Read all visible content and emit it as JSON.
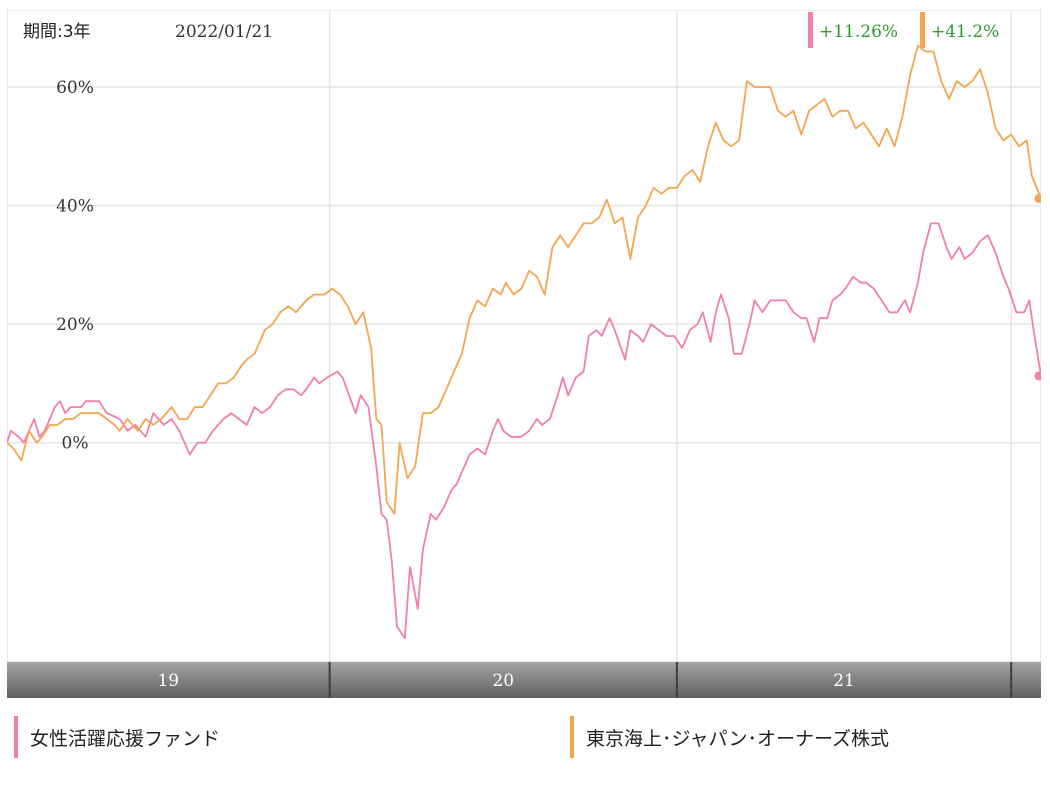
{
  "header": {
    "period": "期間:3年",
    "date": "2022/01/21"
  },
  "returns": {
    "fund_a": "+11.26%",
    "fund_b": "+41.2%"
  },
  "colors": {
    "fund_a": "#f07fb0",
    "fund_b": "#f4a552",
    "return_text": "#2e9a2e",
    "grid": "#e6e6e6",
    "band_top": "#9a9a9a",
    "band_bottom": "#666666"
  },
  "chart_data": {
    "type": "line",
    "ylim": [
      -37,
      73
    ],
    "y_ticks": [
      {
        "v": 60,
        "label": "60%"
      },
      {
        "v": 40,
        "label": "40%"
      },
      {
        "v": 20,
        "label": "20%"
      },
      {
        "v": 0,
        "label": "0%"
      }
    ],
    "x_range": [
      2018.065,
      2022.055
    ],
    "x_year_bounds": [
      2019.31,
      2020.65,
      2021.94
    ],
    "x_bands": [
      {
        "label": "19",
        "from": 2018.065,
        "to": 2019.31
      },
      {
        "label": "20",
        "from": 2019.31,
        "to": 2020.65
      },
      {
        "label": "21",
        "from": 2020.65,
        "to": 2021.94
      }
    ],
    "series": [
      {
        "name": "女性活躍応援ファンド",
        "color": "#f07fb0",
        "values": [
          [
            2018.065,
            0
          ],
          [
            2018.08,
            2
          ],
          [
            2018.11,
            1
          ],
          [
            2018.13,
            0
          ],
          [
            2018.17,
            4
          ],
          [
            2018.19,
            1
          ],
          [
            2018.21,
            2
          ],
          [
            2018.25,
            6
          ],
          [
            2018.27,
            7
          ],
          [
            2018.29,
            5
          ],
          [
            2018.31,
            6
          ],
          [
            2018.35,
            6
          ],
          [
            2018.37,
            7
          ],
          [
            2018.39,
            7
          ],
          [
            2018.42,
            7
          ],
          [
            2018.45,
            5
          ],
          [
            2018.5,
            4
          ],
          [
            2018.53,
            2
          ],
          [
            2018.56,
            3
          ],
          [
            2018.6,
            1
          ],
          [
            2018.63,
            5
          ],
          [
            2018.67,
            3
          ],
          [
            2018.7,
            4
          ],
          [
            2018.73,
            2
          ],
          [
            2018.75,
            0
          ],
          [
            2018.77,
            -2
          ],
          [
            2018.8,
            0
          ],
          [
            2018.83,
            0
          ],
          [
            2018.86,
            2
          ],
          [
            2018.9,
            4
          ],
          [
            2018.93,
            5
          ],
          [
            2018.96,
            4
          ],
          [
            2018.99,
            3
          ],
          [
            2019.02,
            6
          ],
          [
            2019.05,
            5
          ],
          [
            2019.08,
            6
          ],
          [
            2019.11,
            8
          ],
          [
            2019.14,
            9
          ],
          [
            2019.17,
            9
          ],
          [
            2019.2,
            8
          ],
          [
            2019.22,
            9
          ],
          [
            2019.25,
            11
          ],
          [
            2019.27,
            10
          ],
          [
            2019.3,
            11
          ],
          [
            2019.34,
            12
          ],
          [
            2019.36,
            11
          ],
          [
            2019.41,
            5
          ],
          [
            2019.43,
            8
          ],
          [
            2019.46,
            6
          ],
          [
            2019.49,
            -4
          ],
          [
            2019.51,
            -12
          ],
          [
            2019.53,
            -13
          ],
          [
            2019.55,
            -20
          ],
          [
            2019.57,
            -31
          ],
          [
            2019.6,
            -33
          ],
          [
            2019.62,
            -21
          ],
          [
            2019.65,
            -28
          ],
          [
            2019.67,
            -18
          ],
          [
            2019.7,
            -12
          ],
          [
            2019.72,
            -13
          ],
          [
            2019.75,
            -11
          ],
          [
            2019.78,
            -8
          ],
          [
            2019.8,
            -7
          ],
          [
            2019.83,
            -4
          ],
          [
            2019.85,
            -2
          ],
          [
            2019.88,
            -1
          ],
          [
            2019.91,
            -2
          ],
          [
            2019.94,
            2
          ],
          [
            2019.96,
            4
          ],
          [
            2019.98,
            2
          ],
          [
            2020.01,
            1
          ],
          [
            2020.05,
            1
          ],
          [
            2020.08,
            2
          ],
          [
            2020.11,
            4
          ],
          [
            2020.13,
            3
          ],
          [
            2020.16,
            4
          ],
          [
            2020.19,
            8
          ],
          [
            2020.21,
            11
          ],
          [
            2020.23,
            8
          ],
          [
            2020.26,
            11
          ],
          [
            2020.29,
            12
          ],
          [
            2020.31,
            18
          ],
          [
            2020.34,
            19
          ],
          [
            2020.36,
            18
          ],
          [
            2020.39,
            21
          ],
          [
            2020.41,
            19
          ],
          [
            2020.45,
            14
          ],
          [
            2020.47,
            19
          ],
          [
            2020.5,
            18
          ],
          [
            2020.52,
            17
          ],
          [
            2020.55,
            20
          ],
          [
            2020.58,
            19
          ],
          [
            2020.61,
            18
          ],
          [
            2020.64,
            18
          ],
          [
            2020.67,
            16
          ],
          [
            2020.7,
            19
          ],
          [
            2020.73,
            20
          ],
          [
            2020.75,
            22
          ],
          [
            2020.78,
            17
          ],
          [
            2020.8,
            22
          ],
          [
            2020.82,
            25
          ],
          [
            2020.85,
            21
          ],
          [
            2020.87,
            15
          ],
          [
            2020.9,
            15
          ],
          [
            2020.93,
            20
          ],
          [
            2020.95,
            24
          ],
          [
            2020.98,
            22
          ],
          [
            2021.01,
            24
          ],
          [
            2021.04,
            24
          ],
          [
            2021.07,
            24
          ],
          [
            2021.1,
            22
          ],
          [
            2021.13,
            21
          ],
          [
            2021.15,
            21
          ],
          [
            2021.18,
            17
          ],
          [
            2021.2,
            21
          ],
          [
            2021.23,
            21
          ],
          [
            2021.25,
            24
          ],
          [
            2021.28,
            25
          ],
          [
            2021.3,
            26
          ],
          [
            2021.33,
            28
          ],
          [
            2021.36,
            27
          ],
          [
            2021.38,
            27
          ],
          [
            2021.41,
            26
          ],
          [
            2021.44,
            24
          ],
          [
            2021.47,
            22
          ],
          [
            2021.5,
            22
          ],
          [
            2021.53,
            24
          ],
          [
            2021.55,
            22
          ],
          [
            2021.58,
            27
          ],
          [
            2021.6,
            32
          ],
          [
            2021.63,
            37
          ],
          [
            2021.66,
            37
          ],
          [
            2021.69,
            33
          ],
          [
            2021.71,
            31
          ],
          [
            2021.74,
            33
          ],
          [
            2021.76,
            31
          ],
          [
            2021.79,
            32
          ],
          [
            2021.82,
            34
          ],
          [
            2021.85,
            35
          ],
          [
            2021.88,
            32
          ],
          [
            2021.91,
            28
          ],
          [
            2021.93,
            26
          ],
          [
            2021.96,
            22
          ],
          [
            2021.99,
            22
          ],
          [
            2022.01,
            24
          ],
          [
            2022.03,
            18
          ],
          [
            2022.055,
            11.26
          ]
        ]
      },
      {
        "name": "東京海上･ジャパン･オーナーズ株式",
        "color": "#f4a552",
        "values": [
          [
            2018.065,
            0
          ],
          [
            2018.09,
            -1
          ],
          [
            2018.12,
            -3
          ],
          [
            2018.15,
            2
          ],
          [
            2018.18,
            0
          ],
          [
            2018.2,
            1
          ],
          [
            2018.23,
            3
          ],
          [
            2018.26,
            3
          ],
          [
            2018.29,
            4
          ],
          [
            2018.32,
            4
          ],
          [
            2018.35,
            5
          ],
          [
            2018.38,
            5
          ],
          [
            2018.42,
            5
          ],
          [
            2018.45,
            4
          ],
          [
            2018.48,
            3
          ],
          [
            2018.5,
            2
          ],
          [
            2018.53,
            4
          ],
          [
            2018.57,
            2
          ],
          [
            2018.6,
            4
          ],
          [
            2018.63,
            3
          ],
          [
            2018.66,
            4
          ],
          [
            2018.7,
            6
          ],
          [
            2018.73,
            4
          ],
          [
            2018.76,
            4
          ],
          [
            2018.79,
            6
          ],
          [
            2018.82,
            6
          ],
          [
            2018.85,
            8
          ],
          [
            2018.88,
            10
          ],
          [
            2018.91,
            10
          ],
          [
            2018.94,
            11
          ],
          [
            2018.97,
            13
          ],
          [
            2018.99,
            14
          ],
          [
            2019.02,
            15
          ],
          [
            2019.06,
            19
          ],
          [
            2019.09,
            20
          ],
          [
            2019.12,
            22
          ],
          [
            2019.15,
            23
          ],
          [
            2019.18,
            22
          ],
          [
            2019.22,
            24
          ],
          [
            2019.25,
            25
          ],
          [
            2019.29,
            25
          ],
          [
            2019.32,
            26
          ],
          [
            2019.35,
            25
          ],
          [
            2019.38,
            23
          ],
          [
            2019.41,
            20
          ],
          [
            2019.44,
            22
          ],
          [
            2019.47,
            16
          ],
          [
            2019.49,
            4
          ],
          [
            2019.51,
            3
          ],
          [
            2019.53,
            -10
          ],
          [
            2019.56,
            -12
          ],
          [
            2019.58,
            0
          ],
          [
            2019.61,
            -6
          ],
          [
            2019.64,
            -4
          ],
          [
            2019.67,
            5
          ],
          [
            2019.7,
            5
          ],
          [
            2019.73,
            6
          ],
          [
            2019.76,
            9
          ],
          [
            2019.79,
            12
          ],
          [
            2019.82,
            15
          ],
          [
            2019.85,
            21
          ],
          [
            2019.88,
            24
          ],
          [
            2019.91,
            23
          ],
          [
            2019.94,
            26
          ],
          [
            2019.97,
            25
          ],
          [
            2019.99,
            27
          ],
          [
            2020.02,
            25
          ],
          [
            2020.05,
            26
          ],
          [
            2020.08,
            29
          ],
          [
            2020.11,
            28
          ],
          [
            2020.14,
            25
          ],
          [
            2020.17,
            33
          ],
          [
            2020.2,
            35
          ],
          [
            2020.23,
            33
          ],
          [
            2020.26,
            35
          ],
          [
            2020.29,
            37
          ],
          [
            2020.32,
            37
          ],
          [
            2020.35,
            38
          ],
          [
            2020.38,
            41
          ],
          [
            2020.41,
            37
          ],
          [
            2020.44,
            38
          ],
          [
            2020.47,
            31
          ],
          [
            2020.5,
            38
          ],
          [
            2020.53,
            40
          ],
          [
            2020.56,
            43
          ],
          [
            2020.59,
            42
          ],
          [
            2020.62,
            43
          ],
          [
            2020.65,
            43
          ],
          [
            2020.68,
            45
          ],
          [
            2020.71,
            46
          ],
          [
            2020.74,
            44
          ],
          [
            2020.77,
            50
          ],
          [
            2020.8,
            54
          ],
          [
            2020.83,
            51
          ],
          [
            2020.86,
            50
          ],
          [
            2020.89,
            51
          ],
          [
            2020.92,
            61
          ],
          [
            2020.95,
            60
          ],
          [
            2020.98,
            60
          ],
          [
            2021.01,
            60
          ],
          [
            2021.04,
            56
          ],
          [
            2021.07,
            55
          ],
          [
            2021.1,
            56
          ],
          [
            2021.13,
            52
          ],
          [
            2021.16,
            56
          ],
          [
            2021.19,
            57
          ],
          [
            2021.22,
            58
          ],
          [
            2021.25,
            55
          ],
          [
            2021.28,
            56
          ],
          [
            2021.31,
            56
          ],
          [
            2021.34,
            53
          ],
          [
            2021.37,
            54
          ],
          [
            2021.4,
            52
          ],
          [
            2021.43,
            50
          ],
          [
            2021.46,
            53
          ],
          [
            2021.49,
            50
          ],
          [
            2021.52,
            55
          ],
          [
            2021.55,
            62
          ],
          [
            2021.58,
            67
          ],
          [
            2021.61,
            66
          ],
          [
            2021.64,
            66
          ],
          [
            2021.67,
            61
          ],
          [
            2021.7,
            58
          ],
          [
            2021.73,
            61
          ],
          [
            2021.76,
            60
          ],
          [
            2021.79,
            61
          ],
          [
            2021.82,
            63
          ],
          [
            2021.85,
            59
          ],
          [
            2021.88,
            53
          ],
          [
            2021.91,
            51
          ],
          [
            2021.94,
            52
          ],
          [
            2021.97,
            50
          ],
          [
            2022.0,
            51
          ],
          [
            2022.02,
            45
          ],
          [
            2022.055,
            41.2
          ]
        ]
      }
    ]
  },
  "legend": [
    {
      "label": "女性活躍応援ファンド"
    },
    {
      "label": "東京海上･ジャパン･オーナーズ株式"
    }
  ]
}
